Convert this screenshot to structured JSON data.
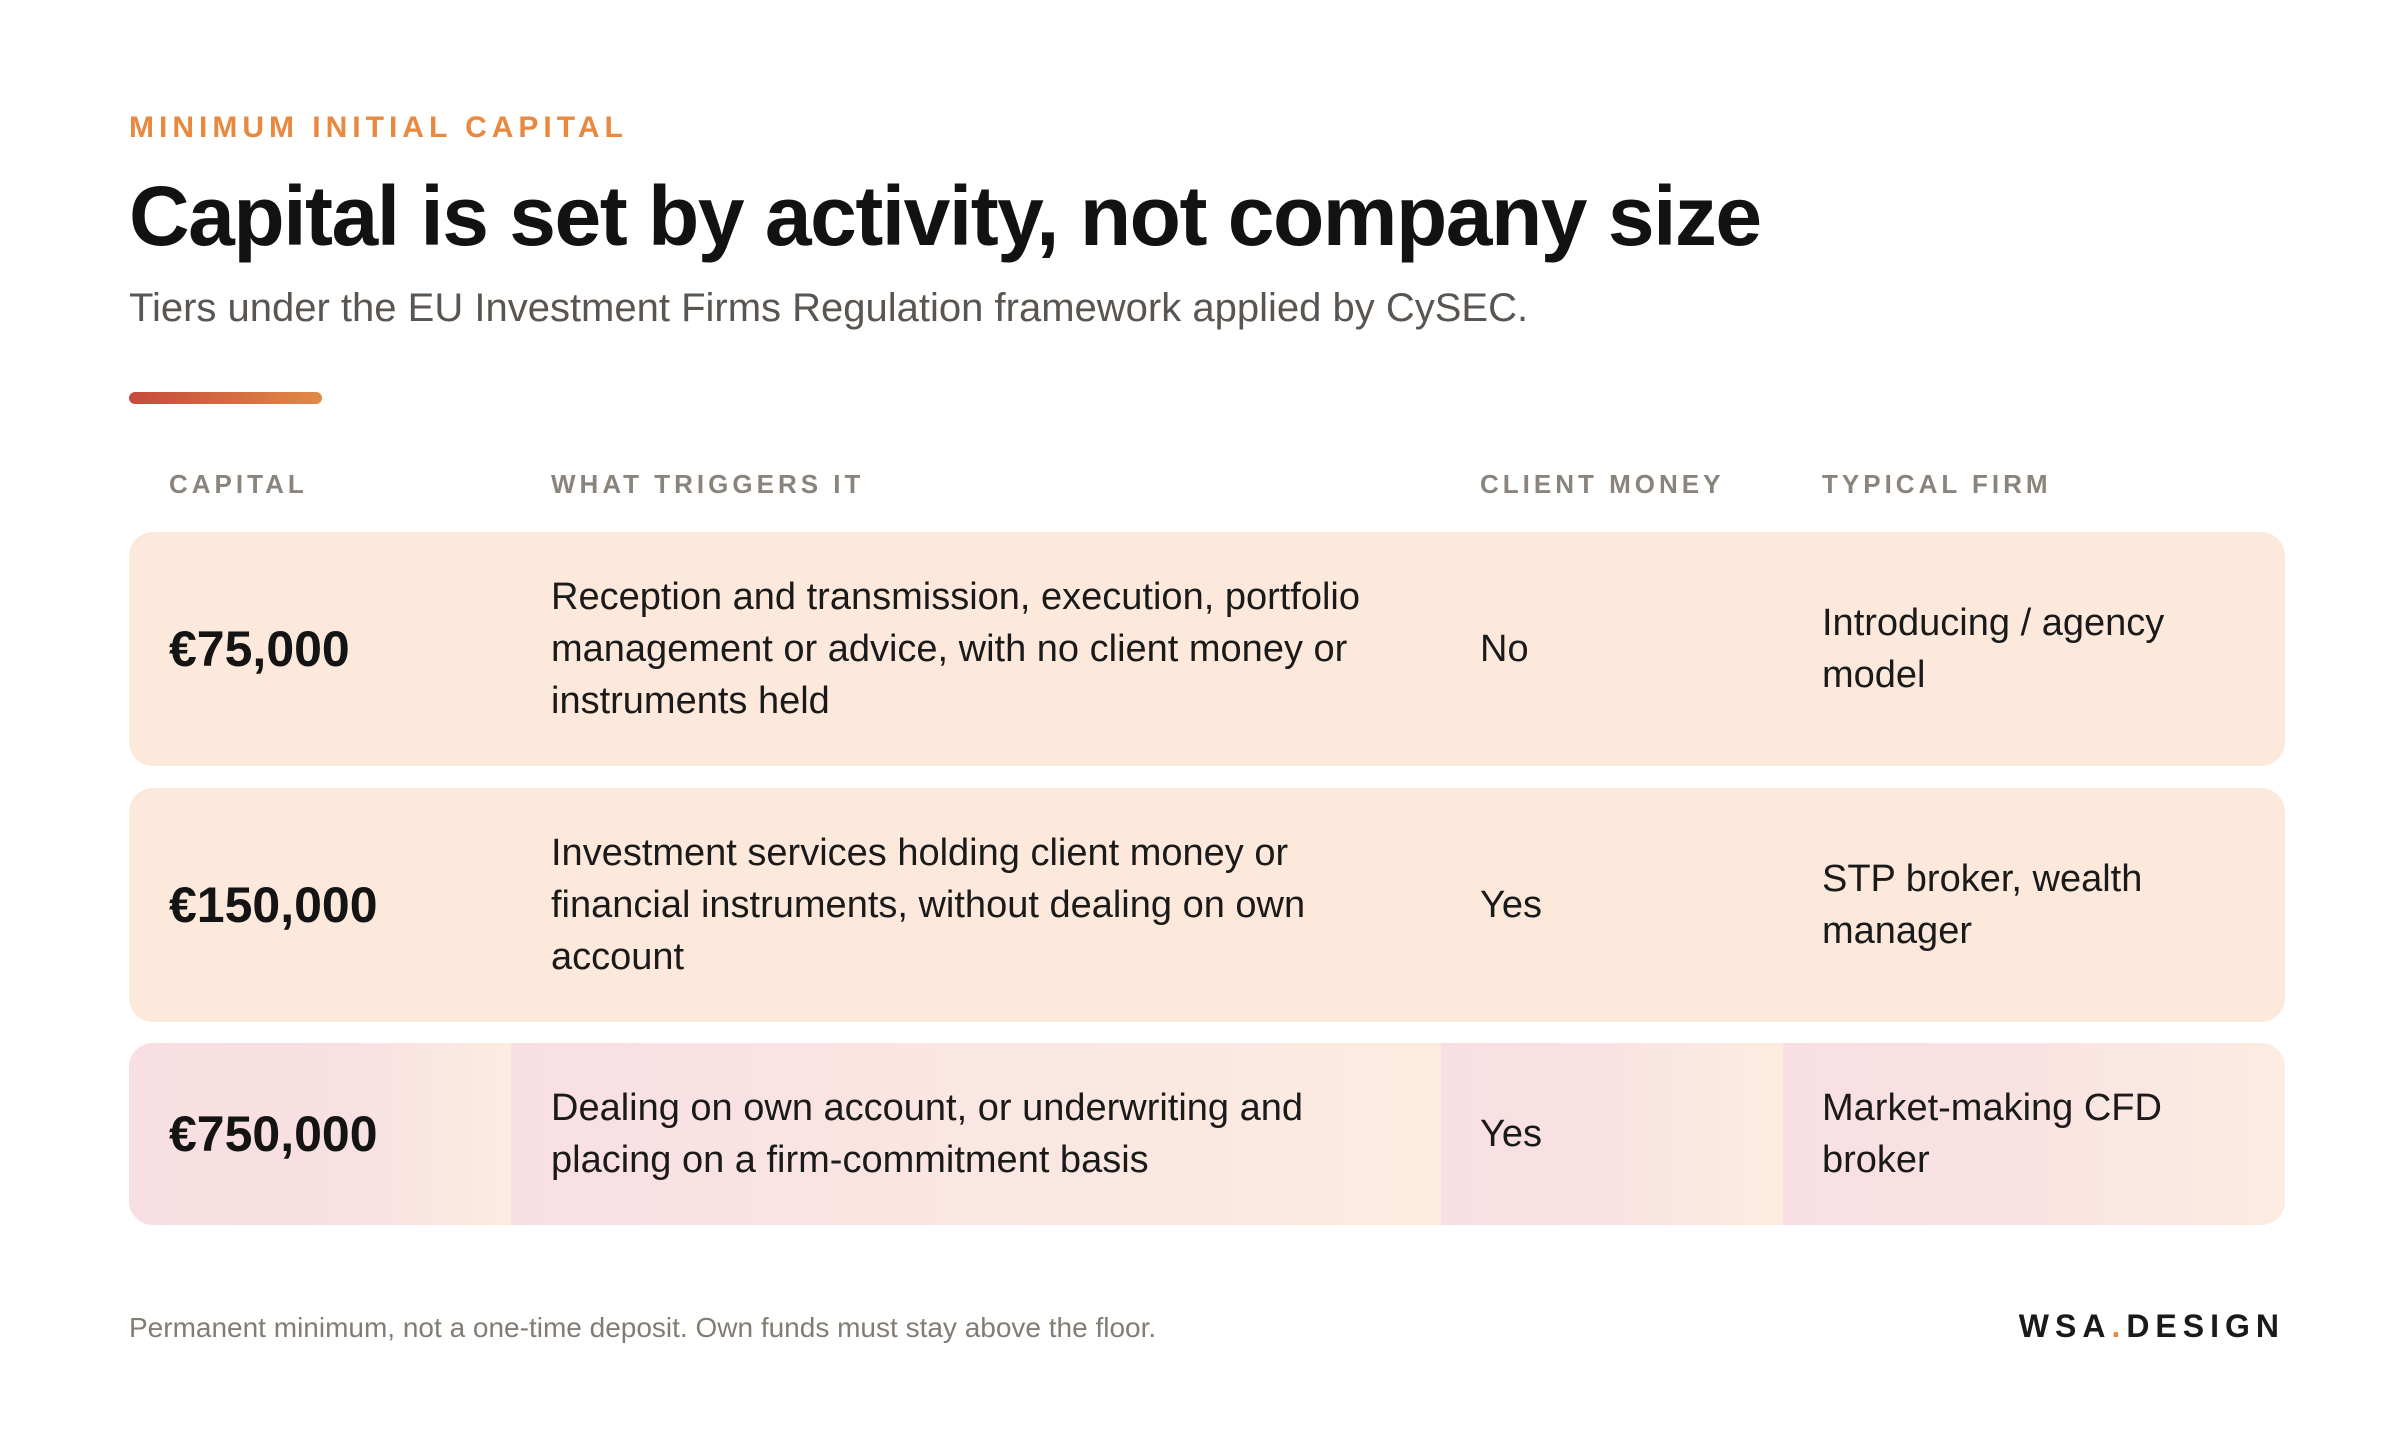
{
  "header": {
    "eyebrow": "MINIMUM INITIAL CAPITAL",
    "title": "Capital is set by activity, not company size",
    "subtitle": "Tiers under the EU Investment Firms Regulation framework applied by CySEC."
  },
  "table": {
    "columns": [
      "CAPITAL",
      "WHAT TRIGGERS IT",
      "CLIENT MONEY",
      "TYPICAL FIRM"
    ],
    "rows": [
      {
        "capital": "€75,000",
        "trigger": "Reception and transmission, execution, portfolio management or advice, with no client money or instruments held",
        "client_money": "No",
        "typical_firm": "Introducing / agency model"
      },
      {
        "capital": "€150,000",
        "trigger": "Investment services holding client money or financial instruments, without dealing on own account",
        "client_money": "Yes",
        "typical_firm": "STP broker, wealth manager"
      },
      {
        "capital": "€750,000",
        "trigger": "Dealing on own account, or underwriting and placing on a firm-commitment basis",
        "client_money": "Yes",
        "typical_firm": "Market-making CFD broker"
      }
    ]
  },
  "footer": {
    "note": "Permanent minimum, not a one-time deposit. Own funds must stay above the floor.",
    "brand_left": "WSA",
    "brand_dot": ".",
    "brand_right": "DESIGN"
  },
  "colors": {
    "accent": "#e8893f",
    "accent_red": "#c64a3d",
    "row_bg": "#fde9dc",
    "row_highlight": "#f8dfe4"
  }
}
